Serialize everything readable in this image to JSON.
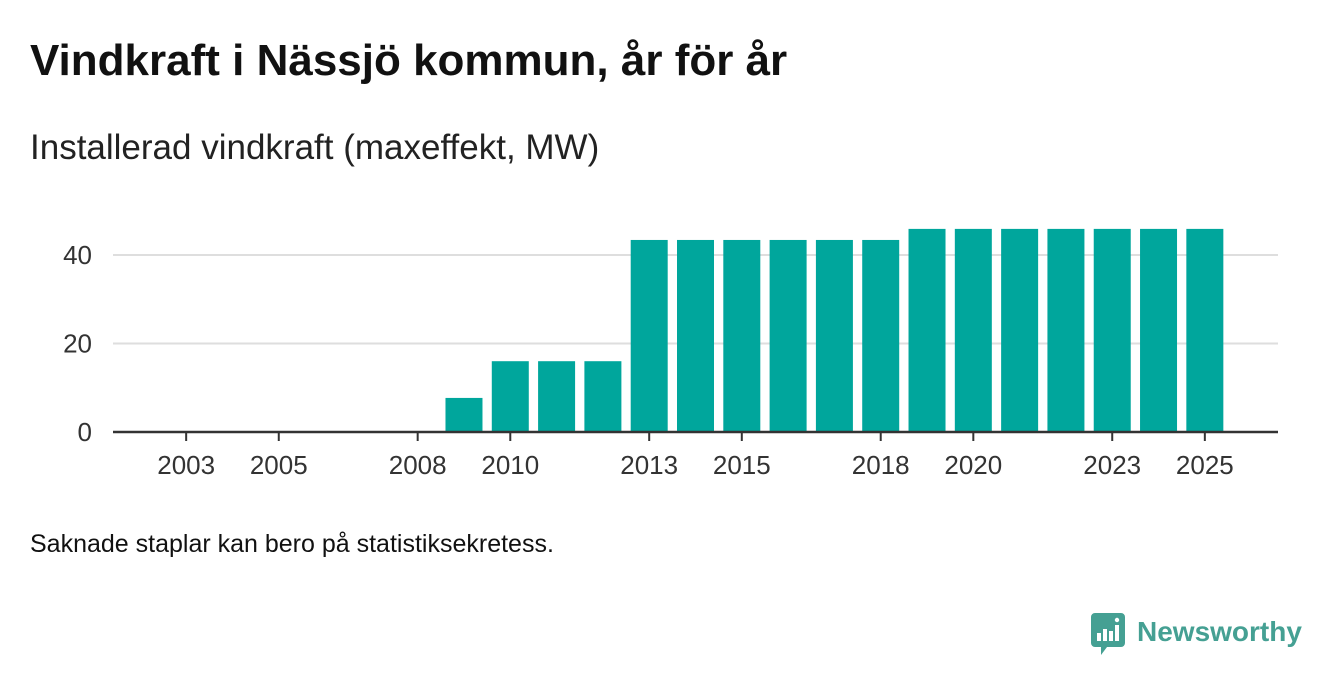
{
  "footnote": "Saknade staplar kan bero på statistiksekretess.",
  "brand": {
    "name": "Newsworthy",
    "color": "#45a093",
    "icon": "newsworthy-chart-bubble-icon"
  },
  "colors": {
    "bar": "#00a69c",
    "grid": "#dedede",
    "axis": "#333333"
  },
  "chart_data": {
    "type": "bar",
    "title": "Vindkraft i Nässjö kommun, år för år",
    "subtitle": "Installerad vindkraft (maxeffekt, MW)",
    "xlabel": "",
    "ylabel": "",
    "x": [
      2009,
      2010,
      2011,
      2012,
      2013,
      2014,
      2015,
      2016,
      2017,
      2018,
      2019,
      2020,
      2021,
      2022,
      2023,
      2024,
      2025
    ],
    "values": [
      7.7,
      16,
      16,
      16,
      43.4,
      43.4,
      43.4,
      43.4,
      43.4,
      43.4,
      45.9,
      45.9,
      45.9,
      45.9,
      45.9,
      45.9,
      45.9
    ],
    "x_ticks": [
      2003,
      2005,
      2008,
      2010,
      2013,
      2015,
      2018,
      2020,
      2023,
      2025
    ],
    "y_ticks": [
      0,
      20,
      40
    ],
    "xlim": [
      2001.42,
      2026.58
    ],
    "ylim": [
      0,
      46
    ],
    "grid": true
  }
}
